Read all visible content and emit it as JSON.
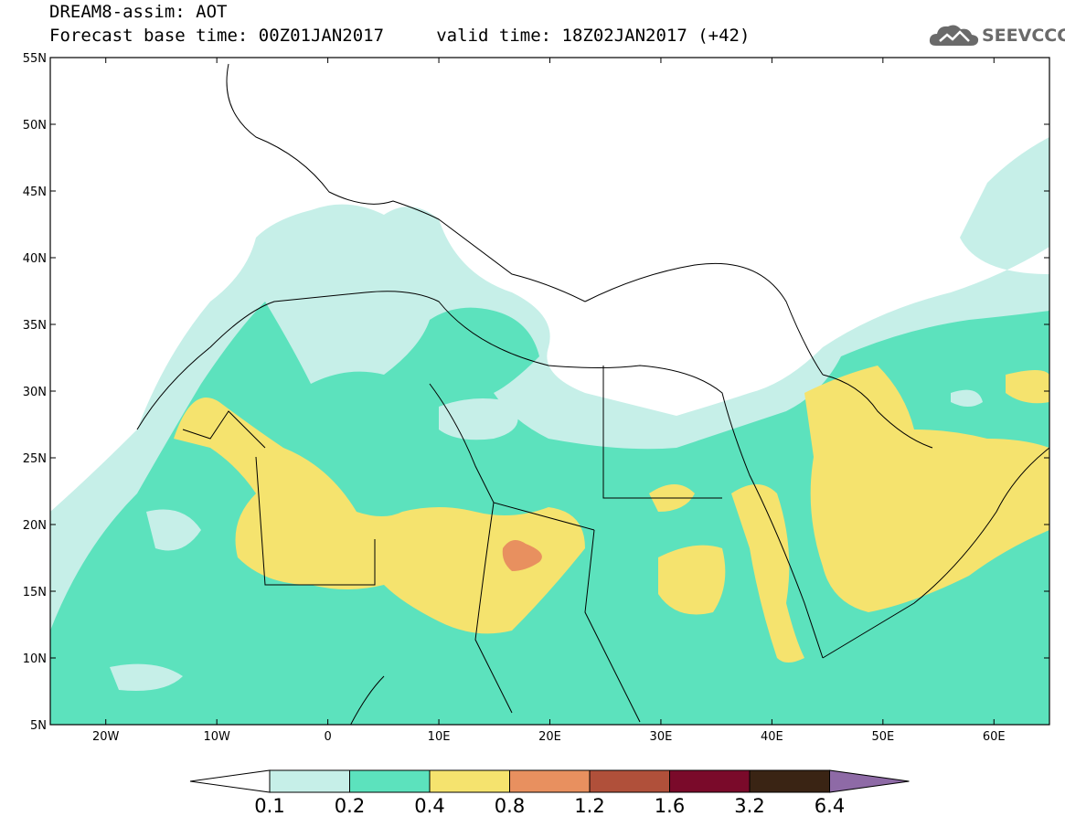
{
  "header": {
    "line1": "DREAM8-assim: AOT",
    "line2": "Forecast base time: 00Z01JAN2017     valid time: 18Z02JAN2017 (+42)"
  },
  "logo": {
    "text": "SEEVCCC",
    "icon": "cloud-icon",
    "color": "#6a6a6a"
  },
  "axes": {
    "lon_labels": [
      "20W",
      "10W",
      "0",
      "10E",
      "20E",
      "30E",
      "40E",
      "50E",
      "60E"
    ],
    "lat_labels": [
      "55N",
      "50N",
      "45N",
      "40N",
      "35N",
      "30N",
      "25N",
      "20N",
      "15N",
      "10N",
      "5N"
    ],
    "lon_range": [
      -25,
      65
    ],
    "lat_range": [
      5,
      55
    ]
  },
  "colorbar": {
    "labels": [
      "0.1",
      "0.2",
      "0.4",
      "0.8",
      "1.2",
      "1.6",
      "3.2",
      "6.4"
    ],
    "colors": [
      "#ffffff",
      "#c6efe8",
      "#5ce2bd",
      "#f5e36e",
      "#e8905f",
      "#b0503a",
      "#7a0a2a",
      "#3a2414",
      "#8e6aa6"
    ]
  },
  "field_colors": {
    "low": "#c6efe8",
    "mid": "#5ce2bd",
    "high": "#f5e36e",
    "peak": "#e8905f",
    "borders": "#000000"
  }
}
